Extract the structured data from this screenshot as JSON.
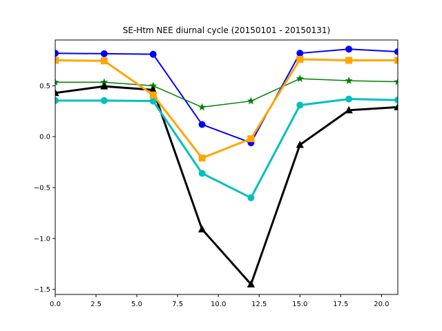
{
  "chart_data": {
    "type": "line",
    "title": "SE-Htm NEE diurnal cycle (20150101 - 20150131)",
    "xlabel": "",
    "ylabel": "",
    "xlim": [
      0,
      21
    ],
    "ylim": [
      -1.55,
      0.95
    ],
    "xticks": [
      0.0,
      2.5,
      5.0,
      7.5,
      10.0,
      12.5,
      15.0,
      17.5,
      20.0
    ],
    "xtick_labels": [
      "0.0",
      "2.5",
      "5.0",
      "7.5",
      "10.0",
      "12.5",
      "15.0",
      "17.5",
      "20.0"
    ],
    "yticks": [
      0.5,
      0.0,
      -0.5,
      -1.0,
      -1.5
    ],
    "ytick_labels": [
      "0.5",
      "0.0",
      "−0.5",
      "−1.0",
      "−1.5"
    ],
    "grid": false,
    "x": [
      0,
      3,
      6,
      9,
      12,
      15,
      18,
      21
    ],
    "series": [
      {
        "color": "#0000ff",
        "marker": "circle",
        "line_width": 2,
        "values": [
          0.82,
          0.815,
          0.81,
          0.12,
          -0.06,
          0.82,
          0.86,
          0.835
        ]
      },
      {
        "color": "#008000",
        "marker": "star",
        "line_width": 1.5,
        "values": [
          0.535,
          0.535,
          0.5,
          0.29,
          0.35,
          0.57,
          0.55,
          0.54
        ]
      },
      {
        "color": "#000000",
        "marker": "triangle",
        "line_width": 3,
        "values": [
          0.43,
          0.495,
          0.46,
          -0.91,
          -1.45,
          -0.08,
          0.26,
          0.29
        ]
      },
      {
        "color": "#00bfbf",
        "marker": "circle",
        "line_width": 3,
        "values": [
          0.355,
          0.355,
          0.35,
          -0.36,
          -0.6,
          0.31,
          0.37,
          0.36
        ]
      },
      {
        "color": "#ffa500",
        "marker": "square",
        "line_width": 3,
        "values": [
          0.75,
          0.745,
          0.41,
          -0.21,
          -0.02,
          0.76,
          0.75,
          0.75
        ]
      }
    ]
  }
}
